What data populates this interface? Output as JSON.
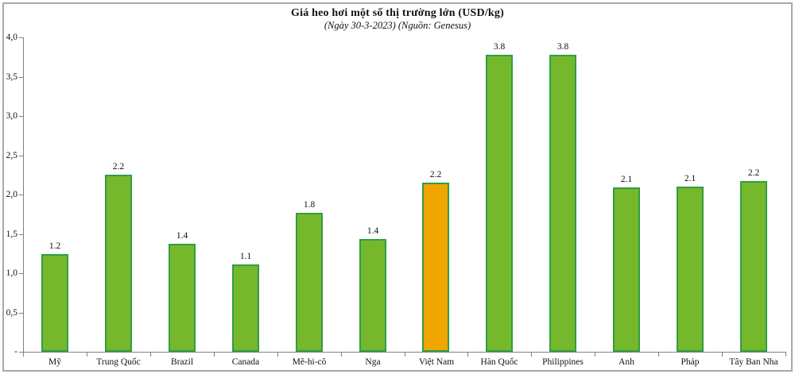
{
  "chart_data": {
    "type": "bar",
    "title": "Giá heo hơi một số thị trường lớn (USD/kg)",
    "subtitle": "(Ngày 30-3-2023) (Nguồn: Genesus)",
    "categories": [
      "Mỹ",
      "Trung Quốc",
      "Brazil",
      "Canada",
      "Mê-hi-cô",
      "Nga",
      "Việt Nam",
      "Hàn Quốc",
      "Philippines",
      "Anh",
      "Pháp",
      "Tây Ban Nha"
    ],
    "values": [
      1.2,
      2.2,
      1.4,
      1.1,
      1.8,
      1.4,
      2.2,
      3.8,
      3.8,
      2.1,
      2.1,
      2.2
    ],
    "bar_labels": [
      "1.2",
      "2.2",
      "1.4",
      "1.1",
      "1.8",
      "1.4",
      "2.2",
      "3.8",
      "3.8",
      "2.1",
      "2.1",
      "2.2"
    ],
    "values_render": [
      1.24,
      2.25,
      1.37,
      1.11,
      1.77,
      1.43,
      2.15,
      3.78,
      3.78,
      2.09,
      2.1,
      2.17
    ],
    "ylim": [
      0,
      4.0
    ],
    "y_ticks": [
      {
        "label": "4,0",
        "value": 4.0
      },
      {
        "label": "3,5",
        "value": 3.5
      },
      {
        "label": "3,0",
        "value": 3.0
      },
      {
        "label": "2,5",
        "value": 2.5
      },
      {
        "label": "2,0",
        "value": 2.0
      },
      {
        "label": "1,5",
        "value": 1.5
      },
      {
        "label": "1,0",
        "value": 1.0
      },
      {
        "label": "0,5",
        "value": 0.5
      },
      {
        "label": "-",
        "value": 0.0
      }
    ],
    "grid": false,
    "legend": "none",
    "highlight_category": "Việt Nam",
    "highlight_index": 6,
    "colors": {
      "bar_fill": "#76B82C",
      "bar_border": "#2F9E44",
      "highlight_fill": "#F0A500",
      "axis": "#808080",
      "text": "#111111",
      "frame_border": "#A9A9A9"
    }
  }
}
